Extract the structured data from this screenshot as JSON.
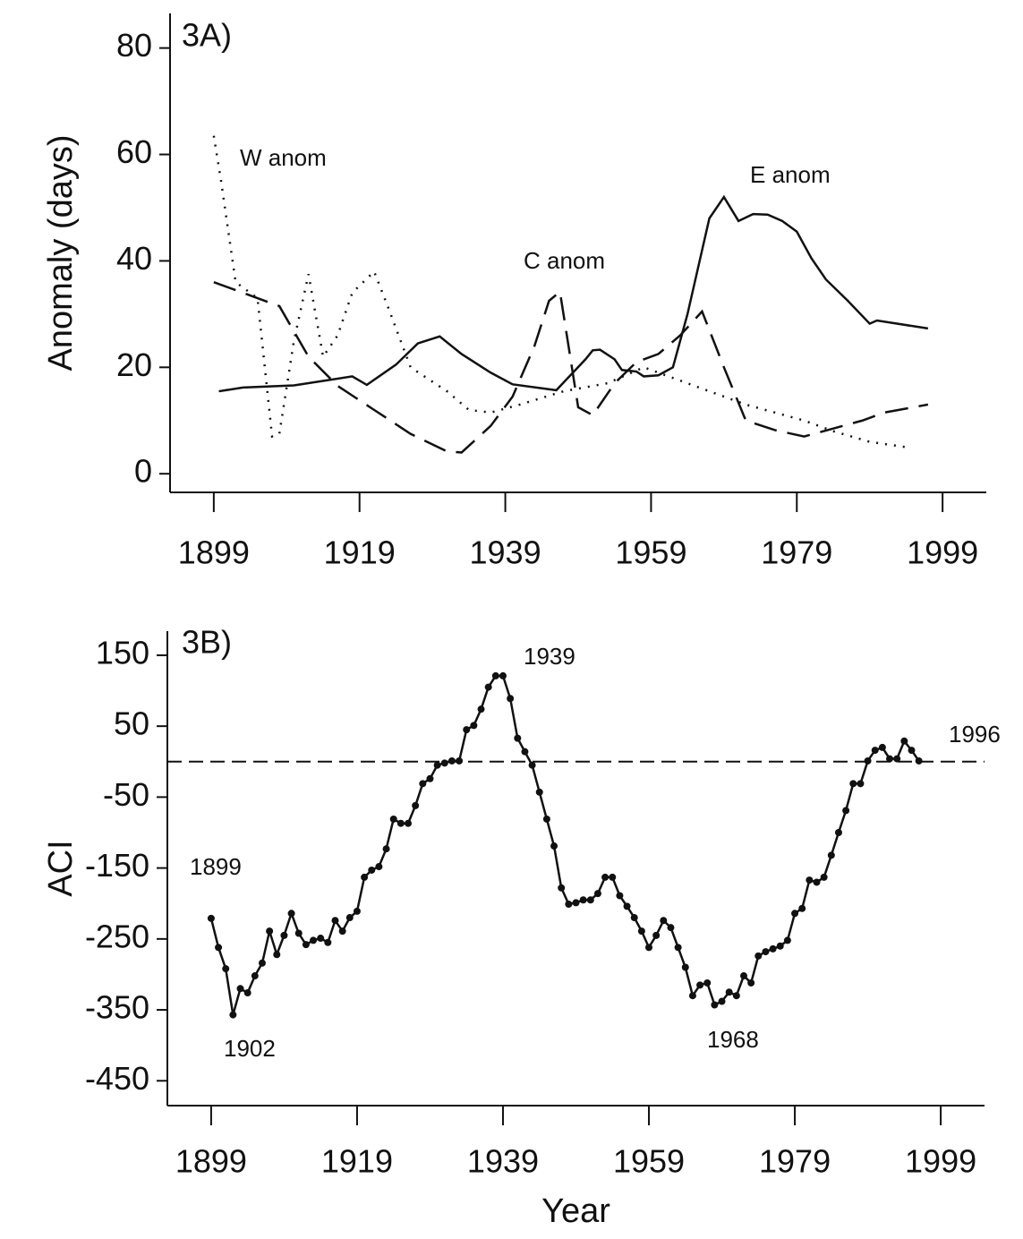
{
  "chart_data": [
    {
      "type": "line",
      "ylabel": "Anomaly (days)",
      "annotations": [
        "3A)",
        "W anom",
        "C anom",
        "E anom"
      ],
      "xlim": [
        1893,
        2005
      ],
      "xticks": [
        1899,
        1919,
        1939,
        1959,
        1979,
        1999
      ],
      "ylim": [
        -3.5,
        86.5
      ],
      "yticks": [
        0,
        20,
        40,
        60,
        80
      ],
      "series": [
        {
          "name": "E anom",
          "color": "#111111",
          "style": "solid",
          "x": [
            1899.7,
            1903,
            1910,
            1918,
            1920,
            1924,
            1927,
            1930,
            1933,
            1937,
            1940,
            1946,
            1950,
            1951,
            1952,
            1954,
            1955,
            1957,
            1958,
            1960,
            1962,
            1964,
            1966,
            1967,
            1969,
            1971,
            1973,
            1975,
            1977,
            1979,
            1981,
            1983,
            1986,
            1989,
            1990,
            1997
          ],
          "values": [
            15.5,
            16.2,
            16.6,
            18.3,
            16.7,
            20.5,
            24.5,
            25.8,
            22.5,
            19,
            16.8,
            15.7,
            21.5,
            23.2,
            23.3,
            21.5,
            19.5,
            19.2,
            18.3,
            18.5,
            20,
            30,
            42,
            48,
            52,
            47.5,
            48.8,
            48.7,
            47.5,
            45.5,
            40.5,
            36.5,
            32.5,
            28.2,
            28.8,
            27.3
          ]
        },
        {
          "name": "C anom",
          "color": "#111111",
          "style": "dashed",
          "x": [
            1899,
            1904,
            1908,
            1912,
            1916,
            1921,
            1926,
            1931,
            1933,
            1937,
            1940,
            1943,
            1945,
            1946.5,
            1949,
            1951,
            1954,
            1957,
            1960,
            1963,
            1966,
            1969,
            1972,
            1976,
            1980,
            1984,
            1988,
            1991,
            1997
          ],
          "values": [
            36,
            33.5,
            31.5,
            22,
            16.5,
            12,
            7.5,
            4.2,
            4,
            9,
            14.5,
            24,
            32.5,
            34.2,
            12.5,
            11,
            17,
            21,
            22.5,
            26,
            30.5,
            20,
            10,
            8.2,
            7,
            8.5,
            10,
            11.5,
            13
          ]
        },
        {
          "name": "W anom",
          "color": "#111111",
          "style": "dotted",
          "x": [
            1899,
            1900,
            1902,
            1905,
            1906,
            1907,
            1908,
            1910,
            1912,
            1914,
            1916,
            1918,
            1921,
            1923,
            1926,
            1931,
            1934,
            1937,
            1941,
            1947,
            1953,
            1958,
            1964,
            1968,
            1972,
            1976,
            1980,
            1984,
            1989,
            1994
          ],
          "values": [
            63.5,
            55,
            36,
            33,
            20,
            7,
            7.5,
            25,
            37.5,
            22,
            26,
            34,
            38,
            31,
            20,
            15.5,
            12,
            11.5,
            13,
            15.5,
            17,
            20,
            17,
            15,
            13,
            11.5,
            10,
            8,
            6,
            5
          ]
        }
      ]
    },
    {
      "type": "line",
      "ylabel": "ACI",
      "xlabel": "Year",
      "annotations": [
        "3B)",
        "1939",
        "1899",
        "1902",
        "1968",
        "1996"
      ],
      "xlim": [
        1893,
        2005
      ],
      "xticks": [
        1899,
        1919,
        1939,
        1959,
        1979,
        1999
      ],
      "ylim": [
        -485,
        184
      ],
      "yticks": [
        150,
        50,
        -50,
        -150,
        -250,
        -350,
        -450
      ],
      "hline": 0,
      "series": [
        {
          "name": "ACI",
          "color": "#111111",
          "style": "solid",
          "markers": true,
          "x": [
            1899,
            1900,
            1901,
            1902,
            1903,
            1904,
            1905,
            1906,
            1907,
            1908,
            1909,
            1910,
            1911,
            1912,
            1913,
            1914,
            1915,
            1916,
            1917,
            1918,
            1919,
            1920,
            1921,
            1922,
            1923,
            1924,
            1925,
            1926,
            1927,
            1928,
            1929,
            1930,
            1931,
            1932,
            1933,
            1934,
            1935,
            1936,
            1937,
            1938,
            1939,
            1940,
            1941,
            1942,
            1943,
            1944,
            1945,
            1946,
            1947,
            1948,
            1949,
            1950,
            1951,
            1952,
            1953,
            1954,
            1955,
            1956,
            1957,
            1958,
            1959,
            1960,
            1961,
            1962,
            1963,
            1964,
            1965,
            1966,
            1967,
            1968,
            1969,
            1970,
            1971,
            1972,
            1973,
            1974,
            1975,
            1976,
            1977,
            1978,
            1979,
            1980,
            1981,
            1982,
            1983,
            1984,
            1985,
            1986,
            1987,
            1988,
            1989,
            1990,
            1991,
            1992,
            1993,
            1994,
            1995,
            1996
          ],
          "values": [
            -221,
            -262,
            -292,
            -357,
            -320,
            -326,
            -302,
            -284,
            -239,
            -272,
            -245,
            -214,
            -242,
            -258,
            -252,
            -249,
            -255,
            -224,
            -239,
            -220,
            -211,
            -163,
            -153,
            -148,
            -123,
            -81,
            -87,
            -87,
            -62,
            -31,
            -24,
            -5,
            -2,
            1,
            1,
            45,
            51,
            74,
            105,
            121,
            121,
            89,
            33,
            14,
            -5,
            -43,
            -81,
            -119,
            -178,
            -201,
            -199,
            -195,
            -195,
            -186,
            -163,
            -163,
            -189,
            -204,
            -220,
            -239,
            -262,
            -245,
            -224,
            -234,
            -262,
            -290,
            -330,
            -315,
            -312,
            -343,
            -338,
            -325,
            -330,
            -302,
            -312,
            -274,
            -268,
            -264,
            -260,
            -252,
            -214,
            -207,
            -167,
            -170,
            -163,
            -132,
            -100,
            -69,
            -31,
            -31,
            1,
            16,
            20,
            4,
            4,
            29,
            16,
            1
          ]
        }
      ]
    }
  ]
}
